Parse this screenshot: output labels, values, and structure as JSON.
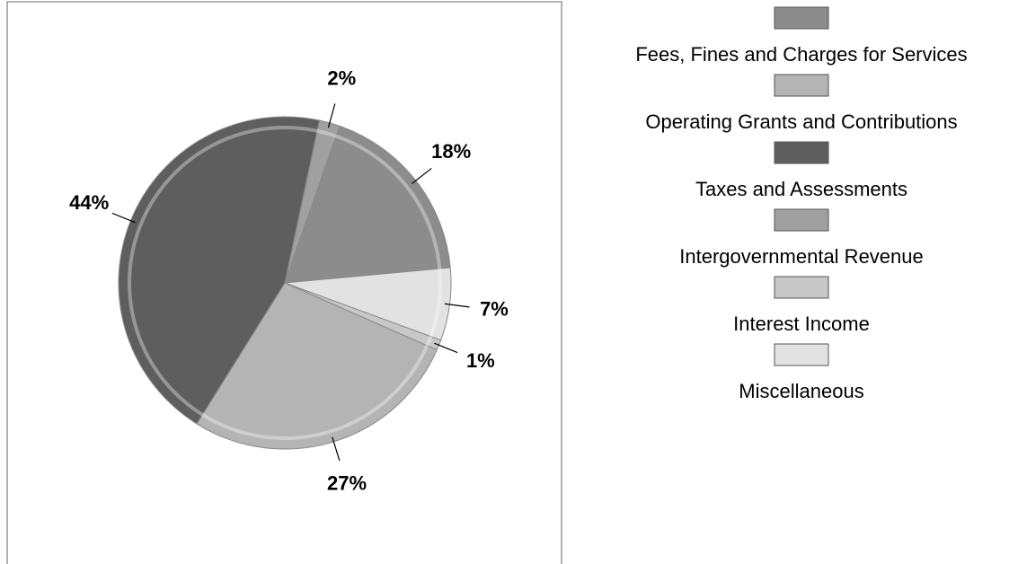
{
  "chart_data": {
    "type": "pie",
    "categories": [
      "Fees, Fines and Charges for Services",
      "Operating Grants and Contributions",
      "Taxes and Assessments",
      "Intergovernmental Revenue",
      "Interest Income",
      "Miscellaneous"
    ],
    "values": [
      18,
      27,
      44,
      2,
      1,
      7
    ],
    "value_labels": [
      "18%",
      "27%",
      "44%",
      "2%",
      "1%",
      "7%"
    ],
    "colors": [
      "#8c8c8c",
      "#b4b4b4",
      "#5e5e5e",
      "#a0a0a0",
      "#c8c8c8",
      "#e2e2e2"
    ],
    "legend": "right"
  }
}
